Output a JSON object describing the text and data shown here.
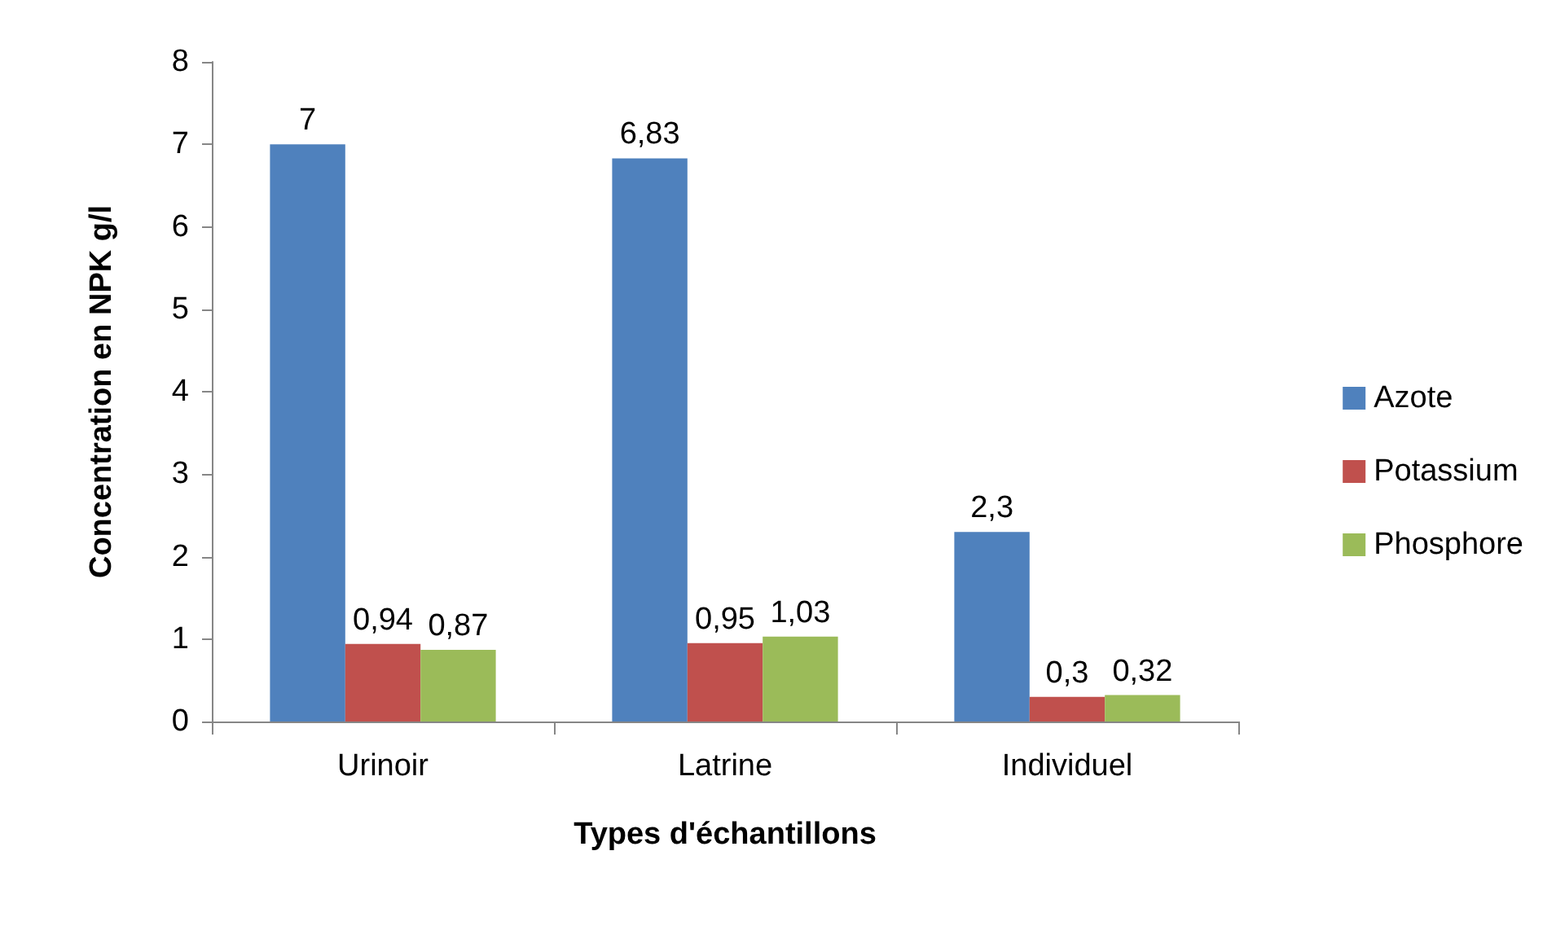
{
  "chart_data": {
    "type": "bar",
    "xlabel": "Types d'échantillons",
    "ylabel": "Concentration en NPK g/l",
    "categories": [
      "Urinoir",
      "Latrine",
      "Individuel"
    ],
    "series": [
      {
        "name": "Azote",
        "color": "#4f81bd",
        "values": [
          7,
          6.83,
          2.3
        ],
        "value_labels": [
          "7",
          "6,83",
          "2,3"
        ]
      },
      {
        "name": "Potassium",
        "color": "#c0504d",
        "values": [
          0.94,
          0.95,
          0.3
        ],
        "value_labels": [
          "0,94",
          "0,95",
          "0,3"
        ]
      },
      {
        "name": "Phosphore",
        "color": "#9bbb59",
        "values": [
          0.87,
          1.03,
          0.32
        ],
        "value_labels": [
          "0,87",
          "1,03",
          "0,32"
        ]
      }
    ],
    "ylim": [
      0,
      8
    ],
    "yticks": [
      0,
      1,
      2,
      3,
      4,
      5,
      6,
      7,
      8
    ],
    "grid": false,
    "legend": "right"
  }
}
